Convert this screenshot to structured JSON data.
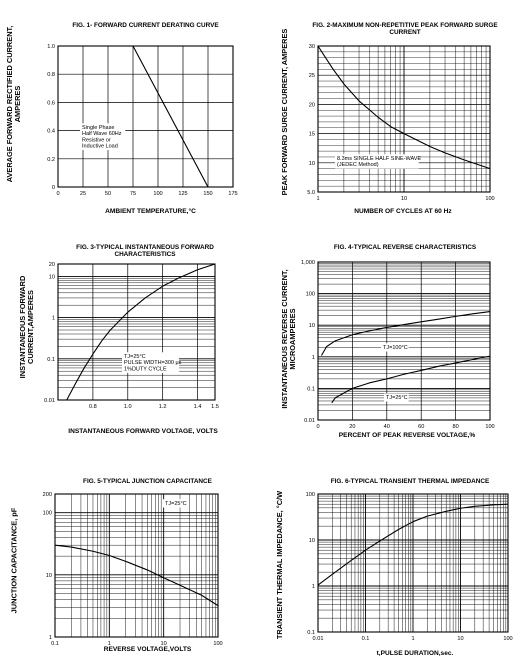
{
  "chart_data": [
    {
      "id": "fig1",
      "type": "line",
      "title": "FIG. 1- FORWARD CURRENT DERATING CURVE",
      "xlabel": "AMBIENT TEMPERATURE,°C",
      "ylabel": "AVERAGE FORWARD RECTIFIED CURRENT, AMPERES",
      "xscale": "linear",
      "yscale": "linear",
      "xlim": [
        0,
        175
      ],
      "ylim": [
        0,
        1.0
      ],
      "xticks": [
        0,
        25,
        50,
        75,
        100,
        125,
        150,
        175
      ],
      "xtick_labels": [
        "0",
        "25",
        "50",
        "75",
        "100",
        "125",
        "150",
        "175"
      ],
      "yticks": [
        0,
        0.2,
        0.4,
        0.6,
        0.8,
        1.0
      ],
      "ytick_labels": [
        "0",
        "0.2",
        "0.4",
        "0.6",
        "0.8",
        "1.0"
      ],
      "grid": "major",
      "series": [
        {
          "x": [
            0,
            75,
            150
          ],
          "y": [
            1.0,
            1.0,
            0
          ]
        }
      ],
      "annotations": [
        {
          "lines": [
            "Single Phase",
            "Half Wave 60Hz",
            "Resistive or",
            "Inductive Load"
          ]
        }
      ]
    },
    {
      "id": "fig2",
      "type": "line",
      "title": "FIG. 2-MAXIMUM NON-REPETITIVE PEAK FORWARD SURGE CURRENT",
      "xlabel": "NUMBER OF CYCLES AT 60 Hz",
      "ylabel": "PEAK FORWARD SURGE CURRENT, AMPERES",
      "xscale": "log",
      "yscale": "linear",
      "xlim": [
        1,
        100
      ],
      "ylim": [
        5,
        30
      ],
      "xticks": [
        1,
        10,
        100
      ],
      "xtick_labels": [
        "1",
        "10",
        "100"
      ],
      "yticks": [
        5,
        10,
        15,
        20,
        25,
        30
      ],
      "ytick_labels": [
        "5.0",
        "10",
        "15",
        "20",
        "25",
        "30"
      ],
      "grid": "major-minor",
      "series": [
        {
          "x": [
            1,
            1.5,
            2,
            3,
            5,
            7,
            10,
            20,
            30,
            50,
            100
          ],
          "y": [
            30,
            26,
            23.5,
            20.6,
            17.8,
            16.2,
            15,
            12.8,
            11.7,
            10.5,
            9
          ]
        }
      ],
      "annotations": [
        {
          "lines": [
            "8.3ms SINGLE HALF SINE-WAVE",
            "(JEDEC Method)"
          ]
        }
      ]
    },
    {
      "id": "fig3",
      "type": "line",
      "title": "FIG. 3-TYPICAL INSTANTANEOUS FORWARD CHARACTERISTICS",
      "xlabel": "INSTANTANEOUS FORWARD VOLTAGE, VOLTS",
      "ylabel": "INSTANTANEOUS FORWARD CURRENT,AMPERES",
      "xscale": "linear",
      "yscale": "log",
      "xlim": [
        0.6,
        1.5
      ],
      "ylim": [
        0.01,
        20
      ],
      "xticks": [
        0.8,
        1.0,
        1.2,
        1.4,
        1.5
      ],
      "xtick_labels": [
        "0.8",
        "1.0",
        "1.2",
        "1.4",
        "1.5"
      ],
      "yticks": [
        0.01,
        0.1,
        1,
        10,
        20
      ],
      "ytick_labels": [
        "0.01",
        "0.1",
        "1",
        "10",
        "20"
      ],
      "grid": "major-minor",
      "series": [
        {
          "x": [
            0.65,
            0.7,
            0.75,
            0.8,
            0.85,
            0.9,
            1.0,
            1.1,
            1.2,
            1.3,
            1.4,
            1.5
          ],
          "y": [
            0.01,
            0.025,
            0.06,
            0.13,
            0.27,
            0.5,
            1.35,
            3.0,
            5.8,
            9.5,
            14.5,
            20
          ]
        }
      ],
      "annotations": [
        {
          "lines": [
            "TJ=25°C",
            "PULSE WIDTH=300 μs",
            "1%DUTY CYCLE"
          ]
        }
      ]
    },
    {
      "id": "fig4",
      "type": "line",
      "title": "FIG. 4-TYPICAL REVERSE CHARACTERISTICS",
      "xlabel": "PERCENT OF PEAK REVERSE VOLTAGE,%",
      "ylabel": "INSTANTANEOUS REVERSE CURRENT, MICROAMPERES",
      "xscale": "linear",
      "yscale": "log",
      "xlim": [
        0,
        100
      ],
      "ylim": [
        0.01,
        1000
      ],
      "xticks": [
        0,
        20,
        40,
        60,
        80,
        100
      ],
      "xtick_labels": [
        "0",
        "20",
        "40",
        "60",
        "80",
        "100"
      ],
      "yticks": [
        0.01,
        0.1,
        1,
        10,
        100,
        1000
      ],
      "ytick_labels": [
        "0.01",
        "0.1",
        "1",
        "10",
        "100",
        "1,000"
      ],
      "grid": "major-minor",
      "series": [
        {
          "x": [
            2,
            5,
            10,
            20,
            30,
            40,
            50,
            60,
            70,
            80,
            90,
            100
          ],
          "y": [
            1.1,
            2.1,
            3.2,
            5,
            6.6,
            8.5,
            10.5,
            12.8,
            15.5,
            19,
            23,
            27
          ]
        },
        {
          "x": [
            8,
            10,
            20,
            30,
            40,
            50,
            60,
            70,
            80,
            90,
            100
          ],
          "y": [
            0.035,
            0.05,
            0.1,
            0.15,
            0.2,
            0.28,
            0.37,
            0.5,
            0.64,
            0.82,
            1.05
          ]
        }
      ],
      "annotations": [
        {
          "text": "TJ=100°C"
        },
        {
          "text": "TJ=25°C"
        }
      ]
    },
    {
      "id": "fig5",
      "type": "line",
      "title": "FIG. 5-TYPICAL JUNCTION CAPACITANCE",
      "xlabel": "REVERSE VOLTAGE,VOLTS",
      "ylabel": "JUNCTION CAPACITANCE, pF",
      "xscale": "log",
      "yscale": "log",
      "xlim": [
        0.1,
        100
      ],
      "ylim": [
        1,
        200
      ],
      "xticks": [
        0.1,
        1,
        10,
        100
      ],
      "xtick_labels": [
        "0.1",
        "1",
        "10",
        "100"
      ],
      "yticks": [
        1,
        10,
        100,
        200
      ],
      "ytick_labels": [
        "1",
        "10",
        "100",
        "200"
      ],
      "grid": "major-minor",
      "series": [
        {
          "x": [
            0.1,
            0.2,
            0.5,
            1,
            2,
            5,
            10,
            20,
            50,
            100
          ],
          "y": [
            30,
            28,
            24,
            20.5,
            16.5,
            12,
            9,
            6.8,
            4.7,
            3.2
          ]
        }
      ],
      "annotations": [
        {
          "text": "TJ=25°C"
        }
      ]
    },
    {
      "id": "fig6",
      "type": "line",
      "title": "FIG. 6-TYPICAL TRANSIENT THERMAL IMPEDANCE",
      "xlabel": "t,PULSE DURATION,sec.",
      "ylabel": "TRANSIENT THERMAL IMPEDANCE, °C/W",
      "xscale": "log",
      "yscale": "log",
      "xlim": [
        0.01,
        100
      ],
      "ylim": [
        0.1,
        100
      ],
      "xticks": [
        0.01,
        0.1,
        1,
        10,
        100
      ],
      "xtick_labels": [
        "0.01",
        "0.1",
        "1",
        "10",
        "100"
      ],
      "yticks": [
        0.1,
        1,
        10,
        100
      ],
      "ytick_labels": [
        "0.1",
        "1",
        "10",
        "100"
      ],
      "grid": "major-minor",
      "series": [
        {
          "x": [
            0.01,
            0.02,
            0.05,
            0.1,
            0.2,
            0.5,
            1,
            2,
            5,
            10,
            20,
            50,
            100
          ],
          "y": [
            1.05,
            1.8,
            3.6,
            6,
            9.5,
            17,
            25,
            33,
            42,
            49,
            54,
            58,
            60
          ]
        }
      ]
    }
  ]
}
